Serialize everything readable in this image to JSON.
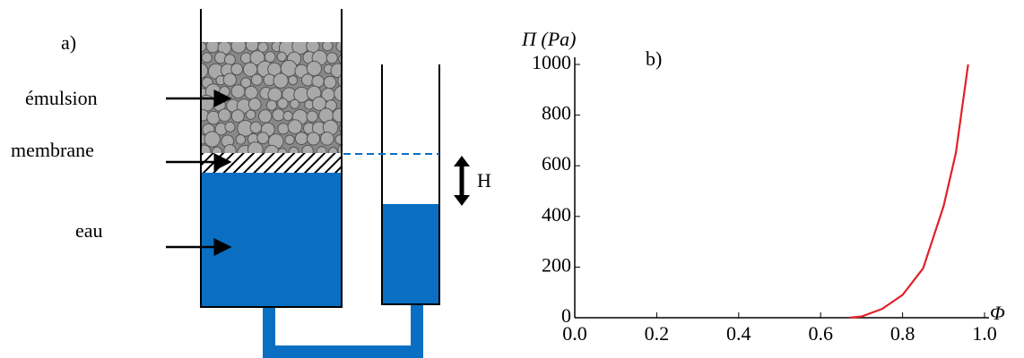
{
  "diagram": {
    "label": "a)",
    "emulsion": "émulsion",
    "membrane": "membrane",
    "water": "eau",
    "height": "H"
  },
  "chart_data": {
    "type": "line",
    "label": "b)",
    "ylabel": "Π (Pa)",
    "xlabel": "Φ",
    "x": [
      0.67,
      0.7,
      0.75,
      0.8,
      0.85,
      0.9,
      0.93,
      0.96
    ],
    "values": [
      0,
      5,
      35,
      90,
      195,
      440,
      650,
      1000
    ],
    "color": "#e0202a",
    "xlim": [
      0,
      1
    ],
    "ylim": [
      0,
      1000
    ],
    "xticks": [
      {
        "value": 0,
        "label": "0.0"
      },
      {
        "value": 0.2,
        "label": "0.2"
      },
      {
        "value": 0.4,
        "label": "0.4"
      },
      {
        "value": 0.6,
        "label": "0.6"
      },
      {
        "value": 0.8,
        "label": "0.8"
      },
      {
        "value": 1,
        "label": "1.0"
      }
    ],
    "yticks": [
      0,
      200,
      400,
      600,
      800,
      1000
    ]
  }
}
